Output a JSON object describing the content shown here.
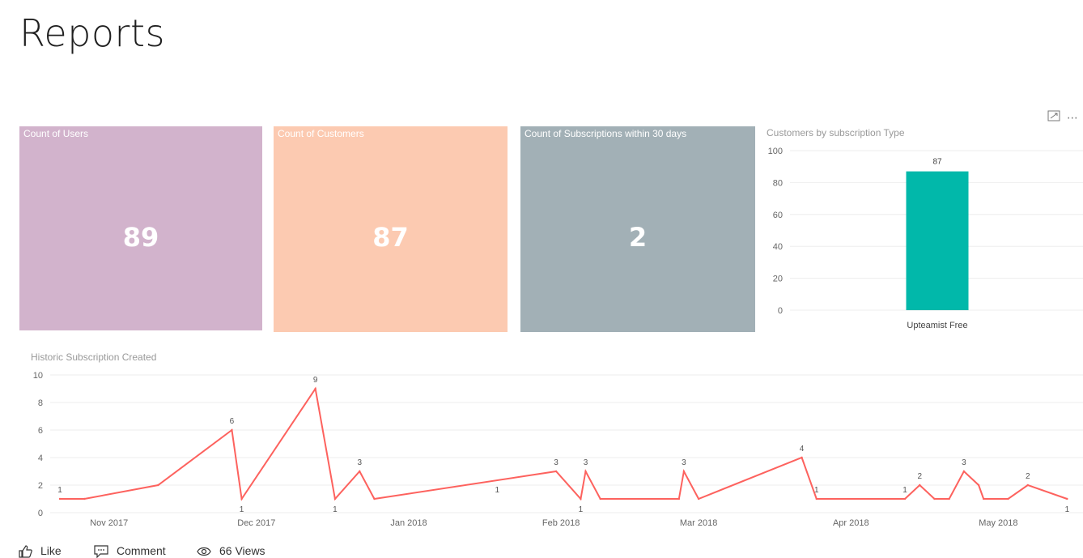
{
  "page": {
    "title": "Reports"
  },
  "cards": [
    {
      "label": "Count of Users",
      "value": "89",
      "color": "#d2b3cc"
    },
    {
      "label": "Count of Customers",
      "value": "87",
      "color": "#fccab1"
    },
    {
      "label": "Count of Subscriptions within 30 days",
      "value": "2",
      "color": "#a2b0b6"
    }
  ],
  "tile_tools": {
    "focus_icon": "focus-mode-icon",
    "more_icon": "more-options-icon",
    "more_glyph": "⋯"
  },
  "footer": {
    "like": "Like",
    "comment": "Comment",
    "views": "66 Views"
  },
  "chart_data": [
    {
      "type": "bar",
      "title": "Customers by subscription Type",
      "categories": [
        "Upteamist Free"
      ],
      "values": [
        87
      ],
      "data_labels": [
        "87"
      ],
      "ylim": [
        0,
        100
      ],
      "yticks": [
        0,
        20,
        40,
        60,
        80,
        100
      ],
      "color": "#01b8aa",
      "grid": true
    },
    {
      "type": "line",
      "title": "Historic Subscription Created",
      "x": [
        "2017-10-22",
        "2017-10-27",
        "2017-11-11",
        "2017-11-26",
        "2017-11-28",
        "2017-12-13",
        "2017-12-17",
        "2017-12-22",
        "2017-12-25",
        "2018-01-31",
        "2018-02-05",
        "2018-02-06",
        "2018-02-09",
        "2018-02-25",
        "2018-02-26",
        "2018-03-01",
        "2018-03-22",
        "2018-03-25",
        "2018-04-12",
        "2018-04-15",
        "2018-04-18",
        "2018-04-21",
        "2018-04-24",
        "2018-04-27",
        "2018-04-28",
        "2018-05-03",
        "2018-05-07",
        "2018-05-15"
      ],
      "y": [
        1,
        1,
        2,
        6,
        1,
        9,
        1,
        3,
        1,
        3,
        1,
        3,
        1,
        1,
        3,
        1,
        4,
        1,
        1,
        2,
        1,
        1,
        3,
        2,
        1,
        1,
        2,
        1
      ],
      "labels": [
        "1",
        "",
        "",
        "6",
        "1",
        "9",
        "1",
        "3",
        "",
        "3",
        "1",
        "3",
        "",
        "",
        "3",
        "",
        "4",
        "1",
        "1",
        "2",
        "",
        "",
        "3",
        "",
        "",
        "",
        "2",
        "1"
      ],
      "xticks": [
        "Nov 2017",
        "Dec 2017",
        "Jan 2018",
        "Feb 2018",
        "Mar 2018",
        "Apr 2018",
        "May 2018"
      ],
      "yticks": [
        0,
        2,
        4,
        6,
        8,
        10
      ],
      "ylim": [
        0,
        10
      ],
      "extra_label": "1",
      "color": "#fd625e",
      "grid": true
    }
  ]
}
